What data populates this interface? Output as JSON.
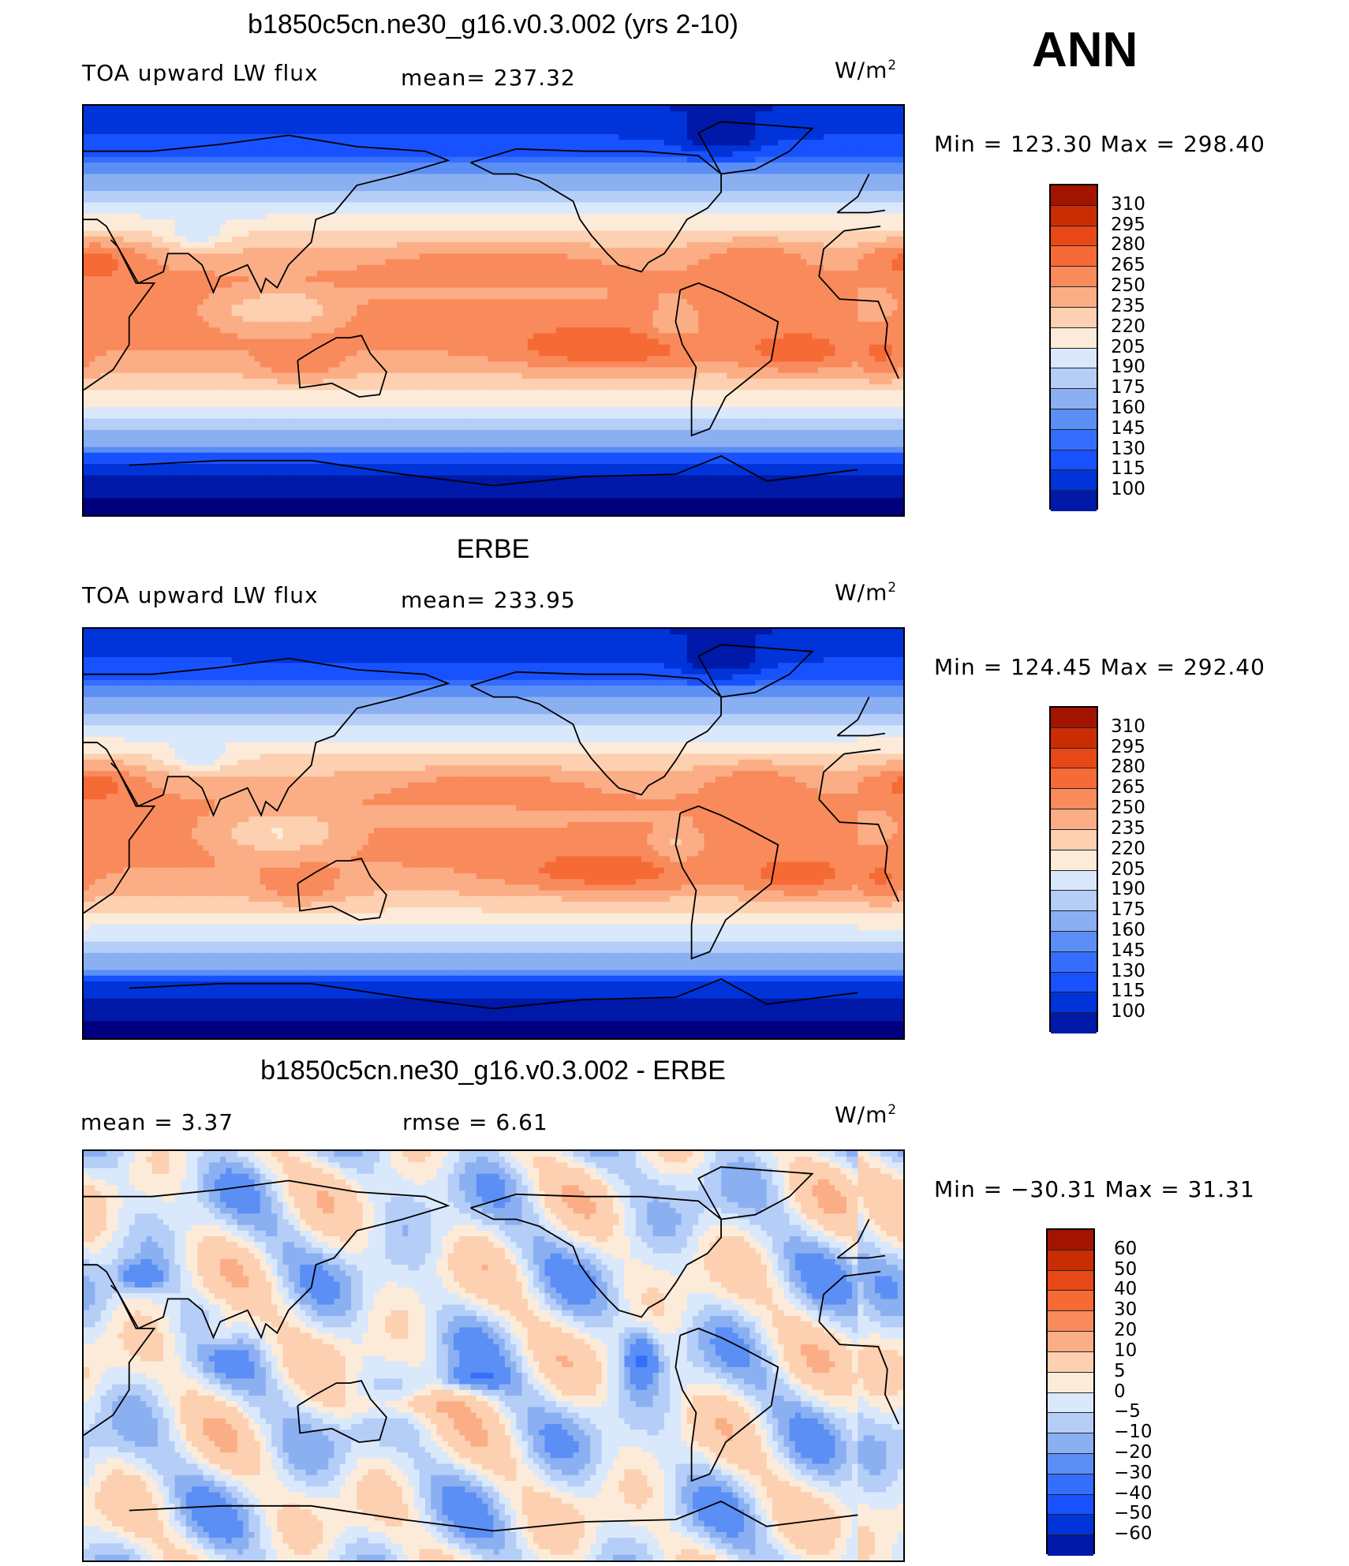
{
  "season": "ANN",
  "colors": {
    "abs_scale": [
      "#00007f",
      "#0019a8",
      "#0034d9",
      "#1852ff",
      "#356efc",
      "#5b8ff5",
      "#8bb0f2",
      "#b5cef8",
      "#dae8fb",
      "#fdebd9",
      "#fcd0b0",
      "#fbae86",
      "#f98a5c",
      "#f66a35",
      "#e84815",
      "#c92d04",
      "#a31400",
      "#7f0000"
    ],
    "diff_scale": [
      "#00007f",
      "#0019a8",
      "#0034d9",
      "#1852ff",
      "#356efc",
      "#5b8ff5",
      "#8bb0f2",
      "#b5cef8",
      "#dae8fb",
      "#fdebd9",
      "#fcd0b0",
      "#fbae86",
      "#f98a5c",
      "#f66a35",
      "#e84815",
      "#c92d04",
      "#a31400",
      "#7f0000"
    ],
    "land_outline": "#000000"
  },
  "panels": [
    {
      "title": "b1850c5cn.ne30_g16.v0.3.002 (yrs 2-10)",
      "left_label": "TOA upward LW flux",
      "mid_label": "mean=  237.32",
      "units_base": "W/m",
      "units_exp": "2",
      "minmax": "Min  =  123.30  Max  =  298.40",
      "colorbar_labels": [
        "310",
        "295",
        "280",
        "265",
        "250",
        "235",
        "220",
        "205",
        "190",
        "175",
        "160",
        "145",
        "130",
        "115",
        "100"
      ],
      "field": "model"
    },
    {
      "title": "ERBE",
      "left_label": "TOA upward LW flux",
      "mid_label": "mean=  233.95",
      "units_base": "W/m",
      "units_exp": "2",
      "minmax": "Min  =  124.45  Max  =  292.40",
      "colorbar_labels": [
        "310",
        "295",
        "280",
        "265",
        "250",
        "235",
        "220",
        "205",
        "190",
        "175",
        "160",
        "145",
        "130",
        "115",
        "100"
      ],
      "field": "obs"
    },
    {
      "title": "b1850c5cn.ne30_g16.v0.3.002 - ERBE",
      "left_label": "mean  =     3.37",
      "mid_label": "rmse  =     6.61",
      "units_base": "W/m",
      "units_exp": "2",
      "minmax": "Min  =  −30.31  Max  =    31.31",
      "colorbar_labels": [
        "60",
        "50",
        "40",
        "30",
        "20",
        "10",
        "5",
        "0",
        "−5",
        "−10",
        "−20",
        "−30",
        "−40",
        "−50",
        "−60"
      ],
      "field": "diff"
    }
  ]
}
